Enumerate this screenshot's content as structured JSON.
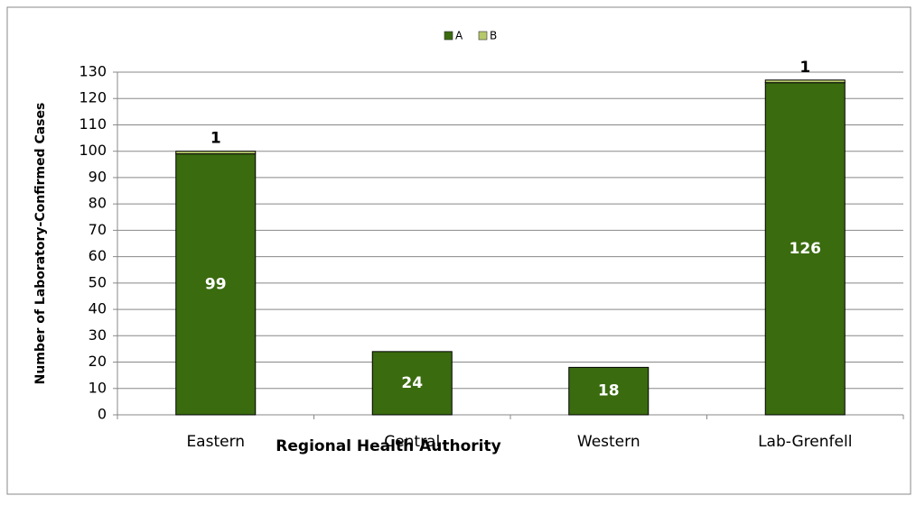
{
  "chart_data": {
    "type": "stacked_bar",
    "xlabel": "Regional Health Authority",
    "ylabel": "Number of Laboratory-Confirmed Cases",
    "categories": [
      "Eastern",
      "Central",
      "Western",
      "Lab-Grenfell"
    ],
    "series": [
      {
        "name": "A",
        "color": "#3a6b0f",
        "values": [
          99,
          24,
          18,
          126
        ]
      },
      {
        "name": "B",
        "color": "#b5c96a",
        "values": [
          1,
          null,
          null,
          1
        ]
      }
    ],
    "ylim": [
      0,
      130
    ],
    "yticks": [
      0,
      10,
      20,
      30,
      40,
      50,
      60,
      70,
      80,
      90,
      100,
      110,
      120,
      130
    ],
    "grid": true,
    "legend": "top"
  }
}
